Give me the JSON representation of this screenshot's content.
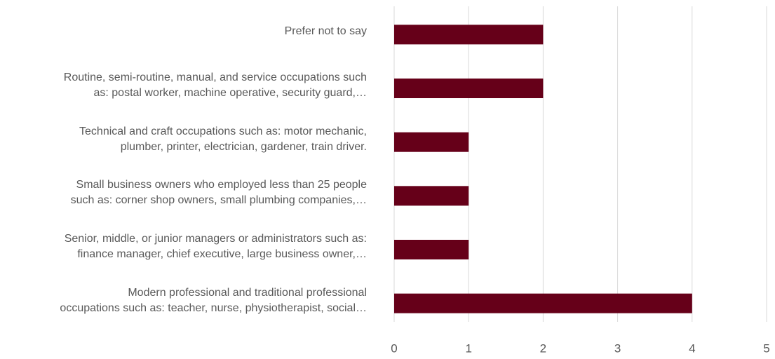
{
  "chart_data": {
    "type": "bar",
    "orientation": "horizontal",
    "categories": [
      "Prefer not to say",
      "Routine, semi-routine, manual, and service occupations such\nas: postal worker, machine operative, security guard,…",
      "Technical and craft occupations such as: motor mechanic,\nplumber, printer, electrician, gardener, train driver.",
      "Small business owners who employed less than 25 people\nsuch as: corner shop owners, small plumbing companies,…",
      "Senior, middle, or junior managers or administrators such as:\nfinance manager, chief executive, large business owner,…",
      "Modern professional and traditional professional\noccupations such as: teacher, nurse, physiotherapist, social…"
    ],
    "values": [
      2,
      2,
      1,
      1,
      1,
      4
    ],
    "color": "#660019",
    "xlim": [
      0,
      5
    ],
    "xticks": [
      0,
      1,
      2,
      3,
      4,
      5
    ],
    "grid": true
  }
}
